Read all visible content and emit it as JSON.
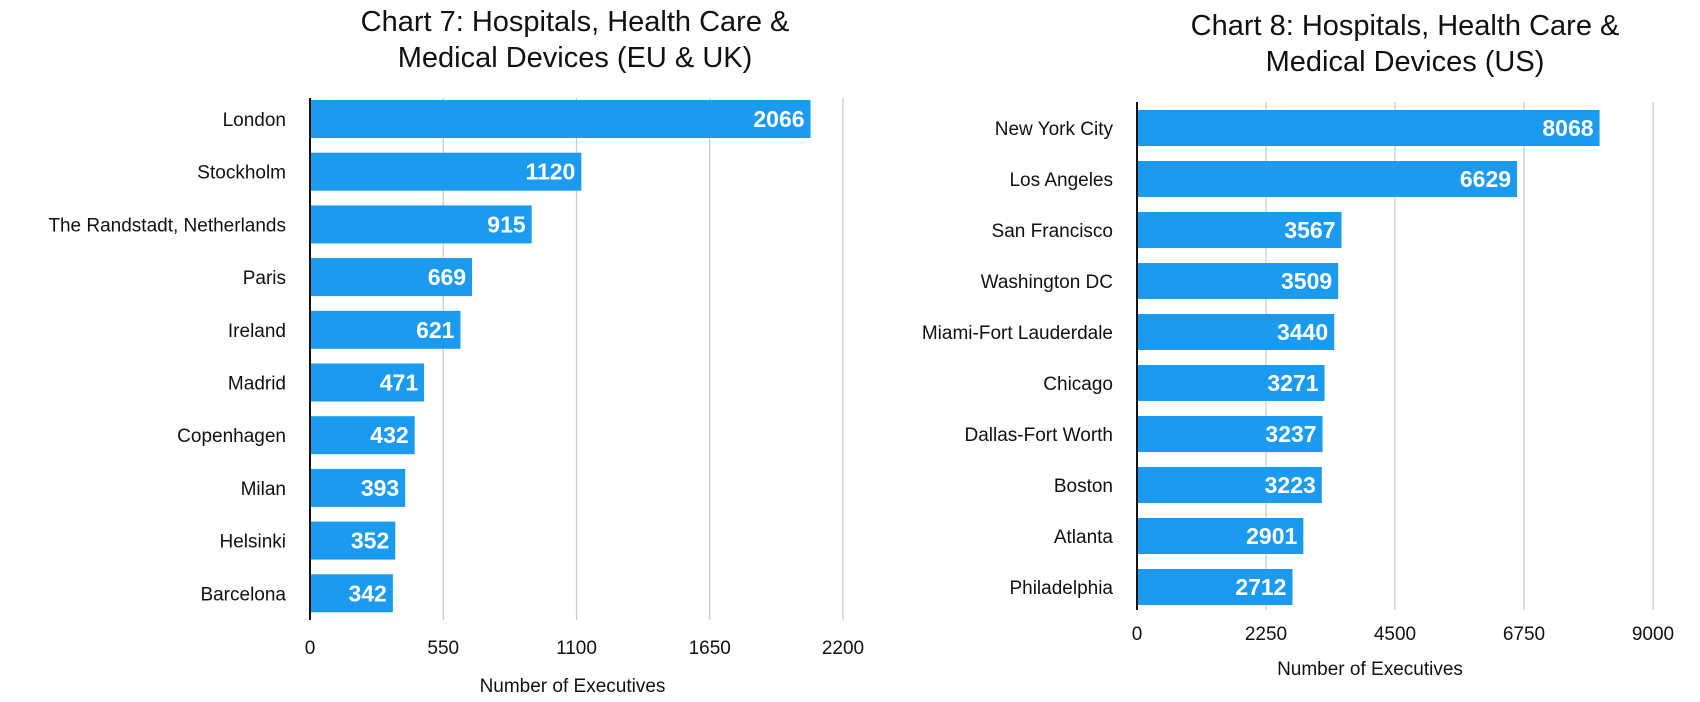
{
  "chart_data": [
    {
      "type": "bar",
      "orientation": "horizontal",
      "title": "Chart 7: Hospitals, Health Care & Medical Devices (EU & UK)",
      "title_lines": [
        "Chart 7: Hospitals, Health Care &",
        "Medical Devices (EU & UK)"
      ],
      "categories": [
        "London",
        "Stockholm",
        "The Randstadt, Netherlands",
        "Paris",
        "Ireland",
        "Madrid",
        "Copenhagen",
        "Milan",
        "Helsinki",
        "Barcelona"
      ],
      "values": [
        2066,
        1120,
        915,
        669,
        621,
        471,
        432,
        393,
        352,
        342
      ],
      "xlabel": "Number of Executives",
      "ylabel": "",
      "xlim": [
        0,
        2200
      ],
      "ticks": [
        0,
        550,
        1100,
        1650,
        2200
      ],
      "grid": true,
      "bar_color": "#1a9bf0"
    },
    {
      "type": "bar",
      "orientation": "horizontal",
      "title": "Chart 8: Hospitals, Health Care & Medical Devices (US)",
      "title_lines": [
        "Chart 8: Hospitals, Health Care &",
        "Medical Devices (US)"
      ],
      "categories": [
        "New York City",
        "Los Angeles",
        "San Francisco",
        "Washington DC",
        "Miami-Fort Lauderdale",
        "Chicago",
        "Dallas-Fort Worth",
        "Boston",
        "Atlanta",
        "Philadelphia"
      ],
      "values": [
        8068,
        6629,
        3567,
        3509,
        3440,
        3271,
        3237,
        3223,
        2901,
        2712
      ],
      "xlabel": "Number of Executives",
      "ylabel": "",
      "xlim": [
        0,
        9000
      ],
      "ticks": [
        0,
        2250,
        4500,
        6750,
        9000
      ],
      "grid": true,
      "bar_color": "#1a9bf0"
    }
  ]
}
